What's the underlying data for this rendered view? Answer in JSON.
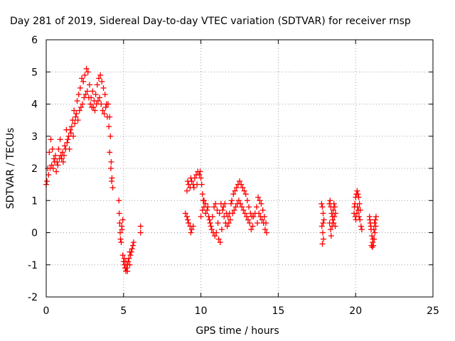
{
  "chart_data": {
    "type": "scatter",
    "title": "Day 281 of 2019, Sidereal Day-to-day VTEC variation (SDTVAR) for receiver rnsp",
    "xlabel": "GPS time / hours",
    "ylabel": "SDTVAR / TECUs",
    "xlim": [
      0,
      25
    ],
    "ylim": [
      -2,
      6
    ],
    "xticks": [
      "0",
      "5",
      "10",
      "15",
      "20",
      "25"
    ],
    "yticks": [
      "-2",
      "-1",
      "0",
      "1",
      "2",
      "3",
      "4",
      "5",
      "6"
    ],
    "grid": true,
    "marker": "+",
    "colors": {
      "series": "#ff0000",
      "grid": "#a0a0a0",
      "axis": "#000000"
    },
    "series": [
      {
        "name": "SDTVAR",
        "points": [
          [
            0.0,
            1.5
          ],
          [
            0.1,
            2.0
          ],
          [
            0.2,
            2.5
          ],
          [
            0.3,
            2.9
          ],
          [
            0.4,
            2.6
          ],
          [
            0.5,
            2.3
          ],
          [
            0.6,
            2.4
          ],
          [
            0.7,
            2.2
          ],
          [
            0.8,
            2.6
          ],
          [
            0.9,
            2.9
          ],
          [
            1.0,
            2.3
          ],
          [
            1.1,
            2.2
          ],
          [
            1.2,
            2.7
          ],
          [
            1.3,
            3.2
          ],
          [
            1.4,
            2.9
          ],
          [
            1.5,
            2.6
          ],
          [
            1.6,
            3.1
          ],
          [
            1.7,
            3.5
          ],
          [
            1.8,
            3.8
          ],
          [
            1.9,
            3.6
          ],
          [
            2.0,
            4.1
          ],
          [
            2.1,
            4.3
          ],
          [
            2.2,
            4.5
          ],
          [
            2.3,
            4.8
          ],
          [
            2.4,
            4.7
          ],
          [
            2.5,
            4.9
          ],
          [
            2.6,
            5.1
          ],
          [
            2.7,
            5.0
          ],
          [
            2.8,
            4.6
          ],
          [
            2.9,
            4.2
          ],
          [
            3.0,
            4.4
          ],
          [
            3.1,
            4.1
          ],
          [
            3.2,
            4.3
          ],
          [
            3.3,
            4.6
          ],
          [
            3.4,
            4.8
          ],
          [
            3.5,
            4.9
          ],
          [
            3.6,
            4.7
          ],
          [
            3.7,
            4.5
          ],
          [
            3.8,
            4.3
          ],
          [
            3.9,
            4.0
          ],
          [
            4.0,
            4.0
          ],
          [
            4.1,
            3.6
          ],
          [
            4.15,
            3.0
          ],
          [
            4.2,
            2.2
          ],
          [
            4.25,
            1.7
          ],
          [
            4.3,
            1.4
          ],
          [
            0.05,
            1.6
          ],
          [
            0.15,
            1.8
          ],
          [
            0.25,
            2.0
          ],
          [
            0.35,
            2.1
          ],
          [
            0.45,
            2.0
          ],
          [
            0.55,
            2.2
          ],
          [
            0.65,
            1.9
          ],
          [
            0.75,
            2.1
          ],
          [
            0.85,
            2.3
          ],
          [
            0.95,
            2.4
          ],
          [
            1.05,
            2.5
          ],
          [
            1.15,
            2.4
          ],
          [
            1.25,
            2.6
          ],
          [
            1.35,
            2.8
          ],
          [
            1.45,
            3.0
          ],
          [
            1.55,
            3.2
          ],
          [
            1.65,
            3.3
          ],
          [
            1.75,
            3.0
          ],
          [
            1.85,
            3.4
          ],
          [
            1.95,
            3.7
          ],
          [
            2.05,
            3.5
          ],
          [
            2.15,
            3.8
          ],
          [
            2.25,
            3.9
          ],
          [
            2.35,
            4.0
          ],
          [
            2.45,
            4.2
          ],
          [
            2.55,
            4.3
          ],
          [
            2.65,
            4.4
          ],
          [
            2.75,
            4.2
          ],
          [
            2.85,
            4.0
          ],
          [
            2.95,
            3.9
          ],
          [
            3.05,
            3.9
          ],
          [
            3.15,
            3.8
          ],
          [
            3.25,
            4.0
          ],
          [
            3.35,
            4.1
          ],
          [
            3.45,
            4.2
          ],
          [
            3.55,
            4.0
          ],
          [
            3.65,
            3.8
          ],
          [
            3.75,
            3.7
          ],
          [
            3.85,
            3.9
          ],
          [
            3.95,
            3.6
          ],
          [
            4.05,
            3.3
          ],
          [
            4.1,
            2.5
          ],
          [
            4.18,
            2.0
          ],
          [
            4.23,
            1.6
          ],
          [
            4.7,
            1.0
          ],
          [
            4.72,
            0.6
          ],
          [
            4.75,
            0.3
          ],
          [
            4.78,
            0.0
          ],
          [
            4.8,
            -0.2
          ],
          [
            4.85,
            -0.3
          ],
          [
            4.9,
            0.1
          ],
          [
            4.95,
            0.4
          ],
          [
            4.88,
            0.2
          ],
          [
            4.95,
            -0.7
          ],
          [
            5.0,
            -0.9
          ],
          [
            5.05,
            -1.0
          ],
          [
            5.1,
            -1.1
          ],
          [
            5.15,
            -1.2
          ],
          [
            5.2,
            -1.1
          ],
          [
            5.25,
            -1.0
          ],
          [
            5.3,
            -0.9
          ],
          [
            5.35,
            -0.8
          ],
          [
            5.4,
            -1.0
          ],
          [
            5.45,
            -0.7
          ],
          [
            5.5,
            -0.6
          ],
          [
            5.55,
            -0.5
          ],
          [
            5.6,
            -0.4
          ],
          [
            5.65,
            -0.3
          ],
          [
            5.05,
            -0.8
          ],
          [
            5.15,
            -0.9
          ],
          [
            5.25,
            -1.2
          ],
          [
            5.4,
            -0.6
          ],
          [
            6.1,
            0.2
          ],
          [
            6.1,
            0.0
          ],
          [
            9.0,
            0.6
          ],
          [
            9.1,
            0.5
          ],
          [
            9.2,
            0.3
          ],
          [
            9.3,
            0.2
          ],
          [
            9.4,
            0.1
          ],
          [
            9.5,
            0.2
          ],
          [
            9.15,
            0.4
          ],
          [
            9.35,
            0.0
          ],
          [
            9.1,
            1.3
          ],
          [
            9.2,
            1.5
          ],
          [
            9.3,
            1.4
          ],
          [
            9.4,
            1.6
          ],
          [
            9.5,
            1.5
          ],
          [
            9.6,
            1.7
          ],
          [
            9.7,
            1.8
          ],
          [
            9.8,
            1.9
          ],
          [
            9.9,
            1.8
          ],
          [
            10.0,
            1.7
          ],
          [
            9.15,
            1.6
          ],
          [
            9.35,
            1.7
          ],
          [
            9.55,
            1.4
          ],
          [
            9.75,
            1.5
          ],
          [
            9.95,
            1.9
          ],
          [
            10.05,
            1.5
          ],
          [
            10.1,
            1.2
          ],
          [
            10.15,
            1.0
          ],
          [
            10.2,
            0.8
          ],
          [
            10.3,
            0.6
          ],
          [
            10.0,
            0.5
          ],
          [
            10.1,
            0.7
          ],
          [
            10.2,
            1.0
          ],
          [
            10.3,
            0.9
          ],
          [
            10.4,
            0.7
          ],
          [
            10.5,
            0.5
          ],
          [
            10.6,
            0.3
          ],
          [
            10.7,
            0.1
          ],
          [
            10.8,
            0.0
          ],
          [
            10.9,
            -0.1
          ],
          [
            11.0,
            0.0
          ],
          [
            11.1,
            0.3
          ],
          [
            11.2,
            0.6
          ],
          [
            11.3,
            0.9
          ],
          [
            11.4,
            0.7
          ],
          [
            11.5,
            0.5
          ],
          [
            11.6,
            0.3
          ],
          [
            11.7,
            0.2
          ],
          [
            11.8,
            0.3
          ],
          [
            11.9,
            0.4
          ],
          [
            10.45,
            0.8
          ],
          [
            10.55,
            0.4
          ],
          [
            10.65,
            0.2
          ],
          [
            10.75,
            0.5
          ],
          [
            10.85,
            0.8
          ],
          [
            10.95,
            0.9
          ],
          [
            11.05,
            0.7
          ],
          [
            11.15,
            -0.2
          ],
          [
            11.25,
            -0.3
          ],
          [
            11.35,
            0.1
          ],
          [
            11.45,
            0.8
          ],
          [
            11.55,
            0.9
          ],
          [
            11.65,
            0.6
          ],
          [
            11.75,
            0.5
          ],
          [
            11.85,
            0.6
          ],
          [
            11.95,
            0.9
          ],
          [
            12.0,
            1.0
          ],
          [
            12.1,
            1.2
          ],
          [
            12.2,
            1.3
          ],
          [
            12.3,
            1.4
          ],
          [
            12.4,
            1.5
          ],
          [
            12.5,
            1.6
          ],
          [
            12.6,
            1.5
          ],
          [
            12.7,
            1.4
          ],
          [
            12.8,
            1.3
          ],
          [
            12.9,
            1.2
          ],
          [
            13.0,
            1.0
          ],
          [
            13.1,
            0.8
          ],
          [
            13.2,
            0.6
          ],
          [
            13.3,
            0.5
          ],
          [
            12.05,
            0.6
          ],
          [
            12.15,
            0.7
          ],
          [
            12.25,
            0.8
          ],
          [
            12.35,
            0.9
          ],
          [
            12.45,
            1.0
          ],
          [
            12.55,
            0.9
          ],
          [
            12.65,
            0.8
          ],
          [
            12.75,
            0.7
          ],
          [
            12.85,
            0.6
          ],
          [
            12.95,
            0.5
          ],
          [
            13.05,
            0.4
          ],
          [
            13.15,
            0.3
          ],
          [
            13.25,
            0.1
          ],
          [
            13.35,
            0.2
          ],
          [
            13.4,
            0.5
          ],
          [
            13.5,
            0.6
          ],
          [
            13.6,
            0.8
          ],
          [
            13.7,
            1.1
          ],
          [
            13.8,
            1.0
          ],
          [
            13.9,
            0.9
          ],
          [
            14.0,
            0.7
          ],
          [
            14.1,
            0.5
          ],
          [
            14.2,
            0.3
          ],
          [
            14.25,
            0.0
          ],
          [
            13.65,
            0.3
          ],
          [
            13.75,
            0.6
          ],
          [
            13.85,
            0.5
          ],
          [
            13.95,
            0.4
          ],
          [
            14.05,
            0.3
          ],
          [
            14.15,
            0.1
          ],
          [
            17.8,
            0.9
          ],
          [
            17.85,
            0.8
          ],
          [
            17.9,
            0.6
          ],
          [
            17.95,
            0.4
          ],
          [
            17.82,
            0.2
          ],
          [
            17.88,
            0.0
          ],
          [
            17.92,
            -0.2
          ],
          [
            17.85,
            -0.35
          ],
          [
            17.9,
            0.3
          ],
          [
            18.3,
            0.9
          ],
          [
            18.35,
            1.0
          ],
          [
            18.4,
            0.8
          ],
          [
            18.45,
            0.6
          ],
          [
            18.5,
            0.5
          ],
          [
            18.55,
            0.7
          ],
          [
            18.6,
            0.9
          ],
          [
            18.65,
            0.8
          ],
          [
            18.7,
            0.6
          ],
          [
            18.32,
            0.3
          ],
          [
            18.38,
            0.1
          ],
          [
            18.42,
            -0.1
          ],
          [
            18.48,
            0.2
          ],
          [
            18.52,
            0.4
          ],
          [
            18.58,
            0.3
          ],
          [
            18.62,
            0.5
          ],
          [
            18.68,
            0.2
          ],
          [
            19.9,
            0.6
          ],
          [
            19.95,
            0.9
          ],
          [
            20.0,
            1.1
          ],
          [
            20.05,
            1.2
          ],
          [
            20.1,
            1.3
          ],
          [
            20.15,
            1.2
          ],
          [
            20.2,
            1.1
          ],
          [
            20.25,
            0.9
          ],
          [
            20.3,
            0.7
          ],
          [
            19.92,
            0.8
          ],
          [
            19.98,
            0.5
          ],
          [
            20.02,
            0.4
          ],
          [
            20.08,
            0.6
          ],
          [
            20.12,
            0.8
          ],
          [
            20.18,
            0.7
          ],
          [
            20.22,
            0.5
          ],
          [
            20.28,
            0.4
          ],
          [
            20.35,
            0.2
          ],
          [
            20.4,
            0.1
          ],
          [
            20.9,
            0.5
          ],
          [
            20.95,
            0.3
          ],
          [
            21.0,
            0.1
          ],
          [
            21.05,
            -0.1
          ],
          [
            21.1,
            -0.3
          ],
          [
            21.15,
            -0.4
          ],
          [
            21.2,
            -0.2
          ],
          [
            21.25,
            0.0
          ],
          [
            21.3,
            0.2
          ],
          [
            20.92,
            0.4
          ],
          [
            20.98,
            0.2
          ],
          [
            21.02,
            -0.4
          ],
          [
            21.08,
            -0.45
          ],
          [
            21.12,
            -0.2
          ],
          [
            21.18,
            0.1
          ],
          [
            21.22,
            0.3
          ],
          [
            21.28,
            0.4
          ],
          [
            21.32,
            0.5
          ]
        ]
      }
    ]
  }
}
